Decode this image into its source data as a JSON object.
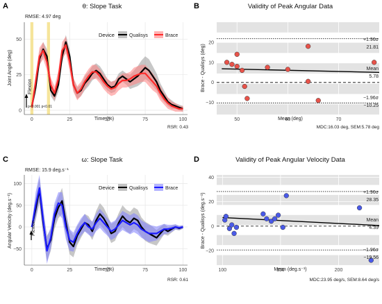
{
  "panels": {
    "A": {
      "letter": "A",
      "title": "θ: Slope Task",
      "subtitle": "RMSE: 4.97 deg",
      "ylabel": "Joint Angle (deg)",
      "xlabel": "Time (%)",
      "legend_title": "Device",
      "flexion": "Flexion",
      "pvals": "p<0.001 p<0.01",
      "footer": "RSR: 0.43"
    },
    "B": {
      "letter": "B",
      "title": "Validity of Peak Angular Data",
      "ylabel": "Brace - Qualisys (deg)",
      "xlabel": "Mean (deg)",
      "upper_label": "+1.96σ",
      "upper_value": "21.81",
      "mean_label": "Mean",
      "mean_value": "5.78",
      "lower_label": "−1.96σ",
      "lower_value": "−10.25",
      "footer": "MDC:16.03 deg, SEM:5.78 deg"
    },
    "C": {
      "letter": "C",
      "title": "ω: Slope Task",
      "subtitle": "RMSE: 15.9 deg.s⁻¹",
      "ylabel": "Angular Velocity (deg.s⁻¹)",
      "xlabel": "Time (%)",
      "legend_title": "Device",
      "flexion": "Flexion",
      "footer": "RSR: 0.61"
    },
    "D": {
      "letter": "D",
      "title": "Validity of Peak Angular Velocity Data",
      "ylabel": "Brace - Qualisys (deg.s⁻¹)",
      "xlabel": "Mean (deg.s⁻¹)",
      "upper_label": "+1.96σ",
      "upper_value": "28.35",
      "mean_label": "Mean",
      "mean_value": "4.39",
      "lower_label": "−1.96σ",
      "lower_value": "−19.56",
      "footer": "MDC:23.95 deg/s, SEM:8.64 deg/s"
    }
  },
  "colors": {
    "qualisys": "#000000",
    "qualisys_band": "#999999",
    "brace_angle": "#ff2a2a",
    "brace_angle_band": "#ff8080",
    "brace_velocity": "#1a1aff",
    "brace_velocity_band": "#8080ff",
    "points_angle": "#e8534a",
    "points_velocity": "#4a5ae8",
    "highlight": "#f5e08a",
    "bland_band": "#e3e3e3"
  },
  "chart_data": [
    {
      "id": "A",
      "type": "line",
      "title": "θ: Slope Task",
      "xlabel": "Time (%)",
      "ylabel": "Joint Angle (deg)",
      "xlim": [
        -5,
        103
      ],
      "ylim": [
        -3,
        62
      ],
      "xticks": [
        0,
        25,
        50,
        75,
        100
      ],
      "yticks": [
        0,
        25,
        50
      ],
      "highlight_x": [
        [
          -1,
          1
        ],
        [
          10,
          12
        ]
      ],
      "legend": {
        "title": "Device",
        "position": "top-right"
      },
      "x": [
        0,
        2.5,
        5,
        7.5,
        10,
        12.5,
        15,
        17.5,
        20,
        22.5,
        25,
        27.5,
        30,
        32.5,
        35,
        37.5,
        40,
        42.5,
        45,
        47.5,
        50,
        52.5,
        55,
        57.5,
        60,
        62.5,
        65,
        67.5,
        70,
        72.5,
        75,
        77.5,
        80,
        82.5,
        85,
        87.5,
        90,
        92.5,
        95,
        97.5,
        100
      ],
      "series": [
        {
          "name": "Qualisys",
          "values": [
            3,
            16,
            36,
            43,
            38,
            14,
            10,
            18,
            38,
            48,
            38,
            18,
            12,
            14,
            19,
            22,
            26,
            28,
            26,
            22,
            18,
            16,
            17,
            22,
            24,
            22,
            20,
            22,
            24,
            27,
            30,
            28,
            24,
            20,
            14,
            10,
            6,
            4,
            3,
            2,
            1
          ],
          "band": [
            3,
            4,
            5,
            5,
            5,
            4,
            4,
            5,
            5,
            5,
            5,
            4,
            4,
            4,
            5,
            5,
            5,
            5,
            5,
            5,
            4,
            4,
            4,
            4,
            4,
            4,
            5,
            6,
            7,
            8,
            8,
            8,
            7,
            6,
            5,
            4,
            3,
            3,
            2,
            2,
            2
          ]
        },
        {
          "name": "Brace",
          "values": [
            2,
            20,
            38,
            42,
            34,
            18,
            12,
            22,
            42,
            46,
            34,
            18,
            12,
            15,
            20,
            24,
            27,
            27,
            24,
            20,
            17,
            15,
            16,
            19,
            21,
            21,
            22,
            24,
            25,
            26,
            26,
            23,
            20,
            17,
            12,
            8,
            5,
            3,
            2,
            1,
            1
          ],
          "band": [
            3,
            5,
            6,
            6,
            6,
            5,
            5,
            6,
            6,
            6,
            6,
            5,
            5,
            5,
            5,
            5,
            5,
            5,
            5,
            5,
            5,
            5,
            5,
            5,
            5,
            5,
            5,
            6,
            6,
            6,
            6,
            6,
            6,
            5,
            5,
            4,
            4,
            3,
            3,
            2,
            2
          ]
        }
      ]
    },
    {
      "id": "B",
      "type": "scatter",
      "title": "Validity of Peak Angular Data",
      "xlabel": "Mean (deg)",
      "ylabel": "Brace - Qualisys (deg)",
      "xlim": [
        46,
        78
      ],
      "ylim": [
        -16,
        30
      ],
      "xticks": [
        50,
        60,
        70
      ],
      "yticks": [
        -10,
        0,
        10,
        20
      ],
      "mean": 5.78,
      "upper_loa": 21.81,
      "lower_loa": -10.25,
      "trend": [
        [
          47,
          6.8
        ],
        [
          78,
          5.0
        ]
      ],
      "points": [
        [
          48,
          10
        ],
        [
          49,
          9
        ],
        [
          50,
          14
        ],
        [
          50,
          8
        ],
        [
          51,
          6
        ],
        [
          51.5,
          -2
        ],
        [
          52,
          -8
        ],
        [
          56,
          7.5
        ],
        [
          60,
          6.5
        ],
        [
          64,
          18
        ],
        [
          64,
          0.5
        ],
        [
          66,
          -9
        ],
        [
          77,
          10
        ]
      ]
    },
    {
      "id": "C",
      "type": "line",
      "title": "ω: Slope Task",
      "xlabel": "Time (%)",
      "ylabel": "Angular Velocity (deg.s⁻¹)",
      "xlim": [
        -5,
        103
      ],
      "ylim": [
        -88,
        120
      ],
      "xticks": [
        0,
        25,
        50,
        75,
        100
      ],
      "yticks": [
        -50,
        0,
        50,
        100
      ],
      "legend": {
        "title": "Device",
        "position": "top-right"
      },
      "x": [
        0,
        2.5,
        5,
        7.5,
        10,
        12.5,
        15,
        17.5,
        20,
        22.5,
        25,
        27.5,
        30,
        32.5,
        35,
        37.5,
        40,
        42.5,
        45,
        47.5,
        50,
        52.5,
        55,
        57.5,
        60,
        62.5,
        65,
        67.5,
        70,
        72.5,
        75,
        77.5,
        80,
        82.5,
        85,
        87.5,
        90,
        92.5,
        95,
        97.5,
        100
      ],
      "series": [
        {
          "name": "Qualisys",
          "values": [
            0,
            40,
            85,
            10,
            -50,
            -30,
            20,
            45,
            60,
            10,
            -35,
            -45,
            -20,
            -5,
            10,
            5,
            -10,
            15,
            30,
            20,
            5,
            -15,
            -10,
            10,
            25,
            15,
            10,
            20,
            15,
            0,
            -10,
            -15,
            -20,
            -25,
            -15,
            -5,
            -10,
            -5,
            0,
            -3,
            0
          ],
          "band": [
            10,
            25,
            30,
            30,
            30,
            25,
            25,
            25,
            30,
            30,
            28,
            25,
            22,
            20,
            20,
            20,
            20,
            22,
            25,
            25,
            22,
            22,
            22,
            22,
            25,
            25,
            25,
            25,
            25,
            22,
            22,
            22,
            20,
            18,
            15,
            12,
            10,
            8,
            6,
            5,
            4
          ]
        },
        {
          "name": "Brace",
          "values": [
            0,
            50,
            90,
            15,
            -55,
            -25,
            30,
            55,
            50,
            0,
            -30,
            -35,
            -15,
            0,
            10,
            0,
            -5,
            10,
            20,
            10,
            0,
            -10,
            -5,
            5,
            15,
            10,
            5,
            10,
            5,
            -5,
            -10,
            -15,
            -15,
            -15,
            -10,
            -5,
            -5,
            -3,
            0,
            -2,
            0
          ],
          "band": [
            10,
            30,
            30,
            30,
            30,
            25,
            25,
            25,
            30,
            28,
            25,
            22,
            20,
            20,
            20,
            18,
            18,
            20,
            22,
            22,
            20,
            20,
            20,
            20,
            22,
            22,
            22,
            22,
            22,
            20,
            20,
            20,
            18,
            16,
            14,
            12,
            10,
            8,
            6,
            5,
            4
          ]
        }
      ]
    },
    {
      "id": "D",
      "type": "scatter",
      "title": "Validity of Peak Angular Velocity Data",
      "xlabel": "Mean (deg.s⁻¹)",
      "ylabel": "Brace - Qualisys (deg.s⁻¹)",
      "xlim": [
        95,
        235
      ],
      "ylim": [
        -32,
        42
      ],
      "xticks": [
        100,
        150,
        200
      ],
      "yticks": [
        -20,
        0,
        20,
        40
      ],
      "mean": 4.39,
      "upper_loa": 28.35,
      "lower_loa": -19.56,
      "trend": [
        [
          100,
          7.0
        ],
        [
          235,
          0.5
        ]
      ],
      "points": [
        [
          102,
          5
        ],
        [
          103,
          8
        ],
        [
          106,
          -2
        ],
        [
          108,
          1
        ],
        [
          110,
          -6
        ],
        [
          112,
          -1
        ],
        [
          135,
          10
        ],
        [
          138,
          6
        ],
        [
          142,
          4
        ],
        [
          145,
          6
        ],
        [
          148,
          9
        ],
        [
          152,
          -1
        ],
        [
          155,
          25
        ],
        [
          218,
          15
        ],
        [
          228,
          -28
        ]
      ]
    }
  ]
}
